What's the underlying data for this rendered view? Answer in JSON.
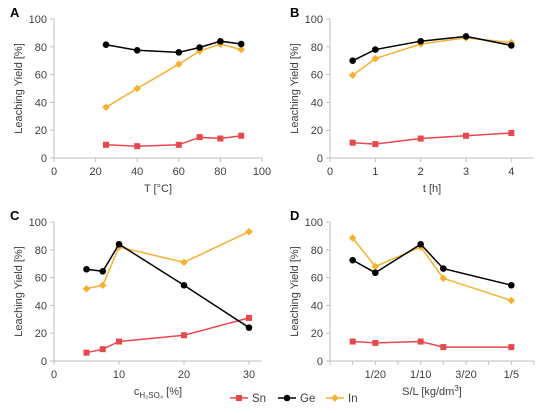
{
  "series_styles": [
    {
      "name": "Sn",
      "color": "#e8474c",
      "marker": "square"
    },
    {
      "name": "Ge",
      "color": "#000000",
      "marker": "circle"
    },
    {
      "name": "In",
      "color": "#f7b02f",
      "marker": "diamond"
    }
  ],
  "chart_data": [
    {
      "panel": "A",
      "type": "line",
      "xlabel": "T [°C]",
      "ylabel": "Leaching Yield [%]",
      "xlim": [
        0,
        100
      ],
      "ylim": [
        0,
        100
      ],
      "xticks": [
        0,
        20,
        40,
        60,
        80,
        100
      ],
      "xticklabels": [
        "0",
        "20",
        "40",
        "60",
        "80",
        "100"
      ],
      "yticks": [
        0,
        20,
        40,
        60,
        80,
        100
      ],
      "grid": false,
      "series": [
        {
          "name": "Sn",
          "x": [
            25,
            40,
            60,
            70,
            80,
            90
          ],
          "values": [
            9.5,
            8.5,
            9.5,
            15,
            14,
            16
          ]
        },
        {
          "name": "Ge",
          "x": [
            25,
            40,
            60,
            70,
            80,
            90
          ],
          "values": [
            81.5,
            77.5,
            76,
            79.5,
            84,
            82
          ]
        },
        {
          "name": "In",
          "x": [
            25,
            40,
            60,
            70,
            80,
            90
          ],
          "values": [
            36.5,
            50,
            67.5,
            77,
            82,
            78
          ]
        }
      ]
    },
    {
      "panel": "B",
      "type": "line",
      "xlabel": "t [h]",
      "ylabel": "Leaching Yield [%]",
      "xlim": [
        0,
        4.5
      ],
      "ylim": [
        0,
        100
      ],
      "xticks": [
        0,
        1,
        2,
        3,
        4
      ],
      "xticklabels": [
        "0",
        "1",
        "2",
        "3",
        "4"
      ],
      "yticks": [
        0,
        20,
        40,
        60,
        80,
        100
      ],
      "grid": false,
      "series": [
        {
          "name": "Sn",
          "x": [
            0.5,
            1,
            2,
            3,
            4
          ],
          "values": [
            11,
            10,
            14,
            16,
            18
          ]
        },
        {
          "name": "Ge",
          "x": [
            0.5,
            1,
            2,
            3,
            4
          ],
          "values": [
            70,
            78,
            84,
            87.5,
            81
          ]
        },
        {
          "name": "In",
          "x": [
            0.5,
            1,
            2,
            3,
            4
          ],
          "values": [
            59.5,
            71.5,
            82,
            86.5,
            83
          ]
        }
      ]
    },
    {
      "panel": "C",
      "type": "line",
      "xlabel_main": "c",
      "xlabel_sub": "H₂SO₄",
      "xlabel_rest": " [%]",
      "ylabel": "Leaching Yield [%]",
      "xlim": [
        0,
        32
      ],
      "ylim": [
        0,
        100
      ],
      "xticks": [
        0,
        10,
        20,
        30
      ],
      "xticklabels": [
        "0",
        "10",
        "20",
        "30"
      ],
      "yticks": [
        0,
        20,
        40,
        60,
        80,
        100
      ],
      "grid": false,
      "series": [
        {
          "name": "Sn",
          "x": [
            5,
            7.5,
            10,
            20,
            30
          ],
          "values": [
            6,
            8.5,
            14,
            18.5,
            31
          ]
        },
        {
          "name": "Ge",
          "x": [
            5,
            7.5,
            10,
            20,
            30
          ],
          "values": [
            66,
            64.5,
            84,
            54.5,
            24
          ]
        },
        {
          "name": "In",
          "x": [
            5,
            7.5,
            10,
            20,
            30
          ],
          "values": [
            52,
            54.5,
            82,
            71,
            93
          ]
        }
      ]
    },
    {
      "panel": "D",
      "type": "line",
      "xlabel_main": "S/L [kg/dm",
      "xlabel_sup": "3",
      "xlabel_rest": "]",
      "ylabel": "Leaching Yield [%]",
      "xlim": [
        0,
        0.225
      ],
      "ylim": [
        0,
        100
      ],
      "xticks": [
        0.05,
        0.1,
        0.15,
        0.2
      ],
      "xticklabels": [
        "1/20",
        "1/10",
        "3/20",
        "1/5"
      ],
      "xminorticks": [
        0,
        0.025,
        0.075,
        0.125,
        0.175,
        0.225
      ],
      "yticks": [
        0,
        20,
        40,
        60,
        80,
        100
      ],
      "grid": false,
      "series": [
        {
          "name": "Sn",
          "x": [
            0.025,
            0.05,
            0.1,
            0.125,
            0.2
          ],
          "values": [
            14,
            13,
            14,
            10,
            10
          ]
        },
        {
          "name": "Ge",
          "x": [
            0.025,
            0.05,
            0.1,
            0.125,
            0.2
          ],
          "values": [
            72.5,
            63.5,
            84,
            66.5,
            54.5
          ]
        },
        {
          "name": "In",
          "x": [
            0.025,
            0.05,
            0.1,
            0.125,
            0.2
          ],
          "values": [
            88.5,
            68,
            82,
            59.5,
            43.5
          ]
        }
      ]
    }
  ],
  "legend": {
    "position": "bottom-center",
    "entries": [
      "Sn",
      "Ge",
      "In"
    ]
  }
}
